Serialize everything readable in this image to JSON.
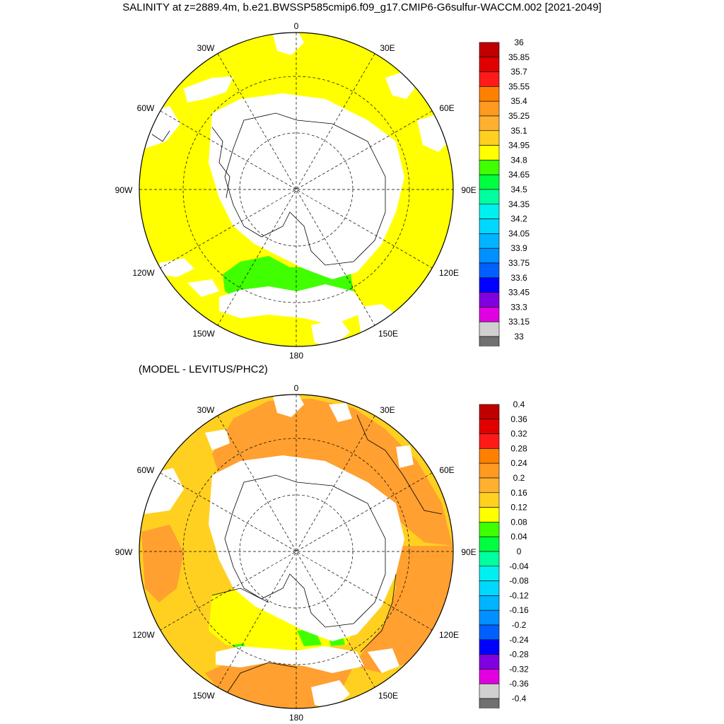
{
  "title": "SALINITY at z=2889.4m, b.e21.BWSSP585cmip6.f09_g17.CMIP6-G6sulfur-WACCM.002 [2021-2049]",
  "subtitle": "(MODEL - LEVITUS/PHC2)",
  "map_labels": {
    "lon0": "0",
    "lon30e": "30E",
    "lon60e": "60E",
    "lon90e": "90E",
    "lon120e": "120E",
    "lon150e": "150E",
    "lon180": "180",
    "lon150w": "150W",
    "lon120w": "120W",
    "lon90w": "90W",
    "lon60w": "60W",
    "lon30w": "30W"
  },
  "colorbar_top": {
    "labels": [
      "36",
      "35.85",
      "35.7",
      "35.55",
      "35.4",
      "35.25",
      "35.1",
      "34.95",
      "34.8",
      "34.65",
      "34.5",
      "34.35",
      "34.2",
      "34.05",
      "33.9",
      "33.75",
      "33.6",
      "33.45",
      "33.3",
      "33.15",
      "33"
    ],
    "colors": [
      "#c00000",
      "#e00000",
      "#ff1a1a",
      "#ff8000",
      "#ff9a20",
      "#ffb030",
      "#ffd020",
      "#ffff00",
      "#40ff00",
      "#00ff40",
      "#00ffa0",
      "#00f0f0",
      "#00d8ff",
      "#00b4ff",
      "#0090ff",
      "#0060ff",
      "#0000ff",
      "#8000e0",
      "#e000e0",
      "#d0d0d0",
      "#707070"
    ]
  },
  "colorbar_bottom": {
    "labels": [
      "0.4",
      "0.36",
      "0.32",
      "0.28",
      "0.24",
      "0.2",
      "0.16",
      "0.12",
      "0.08",
      "0.04",
      "0",
      "-0.04",
      "-0.08",
      "-0.12",
      "-0.16",
      "-0.2",
      "-0.24",
      "-0.28",
      "-0.32",
      "-0.36",
      "-0.4"
    ],
    "colors": [
      "#c00000",
      "#e00000",
      "#ff1a1a",
      "#ff8000",
      "#ff9a20",
      "#ffb030",
      "#ffd020",
      "#ffff00",
      "#40ff00",
      "#00ff40",
      "#00ffa0",
      "#00f0f0",
      "#00d8ff",
      "#00b4ff",
      "#0090ff",
      "#0060ff",
      "#0000ff",
      "#8000e0",
      "#e000e0",
      "#d0d0d0",
      "#707070"
    ]
  },
  "fills": {
    "top_ocean": "#ffff00",
    "top_green": "#40ff00",
    "bottom_orange": "#ffa030",
    "bottom_yellow": "#ffd020",
    "bottom_brightyellow": "#ffff00",
    "bottom_green": "#40ff00",
    "land": "#ffffff"
  }
}
